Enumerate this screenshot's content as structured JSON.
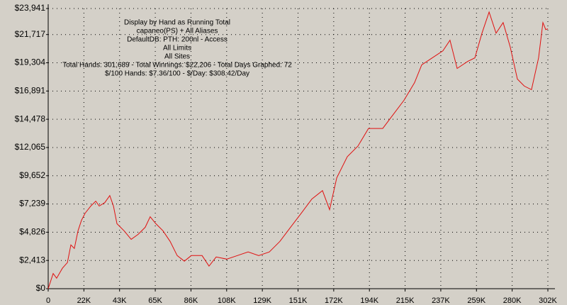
{
  "chart_data": {
    "type": "line",
    "title": "Display by Hand as Running Total",
    "subtitle": [
      "capaneo(PS) + All Aliases",
      "DefaultDB: PTH: 200nl  - Access",
      "All Limits",
      "All Sites",
      "Total Hands: 301,689 - Total Winnings: $22,206 - Total Days Graphed: 72",
      "$/100 Hands: $7.36/100 - $/Day: $308.42/Day"
    ],
    "color": "#e01010",
    "grid": true,
    "x": [
      0,
      3000,
      5100,
      8600,
      11600,
      13700,
      15800,
      18000,
      20100,
      22300,
      25700,
      28700,
      30800,
      34200,
      37200,
      39400,
      41500,
      45800,
      50100,
      54300,
      58600,
      61600,
      65000,
      69300,
      73600,
      77900,
      82200,
      86400,
      92900,
      97100,
      101400,
      107800,
      114200,
      120700,
      127100,
      133500,
      139900,
      146300,
      152800,
      159200,
      165600,
      169900,
      174200,
      180600,
      187000,
      193400,
      202000,
      208400,
      214800,
      221200,
      225500,
      231900,
      238300,
      242600,
      246900,
      253300,
      257600,
      261900,
      266200,
      270400,
      274700,
      279000,
      283300,
      287500,
      291800,
      296100,
      298700,
      300400,
      301689
    ],
    "values": [
      0,
      1300,
      900,
      1750,
      2230,
      3740,
      3440,
      4950,
      5850,
      6450,
      7060,
      7480,
      7060,
      7360,
      7960,
      7060,
      5550,
      4950,
      4220,
      4640,
      5250,
      6150,
      5550,
      4950,
      4040,
      2830,
      2350,
      2830,
      2830,
      1930,
      2710,
      2530,
      2830,
      3140,
      2830,
      3140,
      4040,
      5250,
      6450,
      7660,
      8380,
      6750,
      9470,
      11280,
      12180,
      13690,
      13690,
      14900,
      16100,
      17610,
      19120,
      19720,
      20320,
      21230,
      18820,
      19420,
      19720,
      21830,
      23640,
      21830,
      22740,
      20630,
      17910,
      17310,
      17010,
      19720,
      22740,
      22140,
      22206
    ],
    "xlim": [
      0,
      301689
    ],
    "ylim": [
      0,
      23941
    ],
    "xticks": [
      0,
      {
        "value": 21549,
        "label": "22K"
      },
      {
        "value": 43098,
        "label": "43K"
      },
      {
        "value": 64648,
        "label": "65K"
      },
      {
        "value": 86197,
        "label": "86K"
      },
      {
        "value": 107746,
        "label": "108K"
      },
      {
        "value": 129295,
        "label": "129K"
      },
      {
        "value": 150845,
        "label": "151K"
      },
      {
        "value": 172394,
        "label": "172K"
      },
      {
        "value": 193943,
        "label": "194K"
      },
      {
        "value": 215492,
        "label": "215K"
      },
      {
        "value": 237041,
        "label": "237K"
      },
      {
        "value": 258590,
        "label": "259K"
      },
      {
        "value": 280140,
        "label": "280K"
      },
      {
        "value": 301689,
        "label": "302K"
      }
    ],
    "yticks": [
      {
        "value": 0,
        "label": "$0"
      },
      {
        "value": 2413,
        "label": "$2,413"
      },
      {
        "value": 4826,
        "label": "$4,826"
      },
      {
        "value": 7239,
        "label": "$7,239"
      },
      {
        "value": 9652,
        "label": "$9,652"
      },
      {
        "value": 12065,
        "label": "$12,065"
      },
      {
        "value": 14478,
        "label": "$14,478"
      },
      {
        "value": 16891,
        "label": "$16,891"
      },
      {
        "value": 19304,
        "label": "$19,304"
      },
      {
        "value": 21717,
        "label": "$21,717"
      },
      {
        "value": 23941,
        "label": "$23,941"
      }
    ]
  }
}
